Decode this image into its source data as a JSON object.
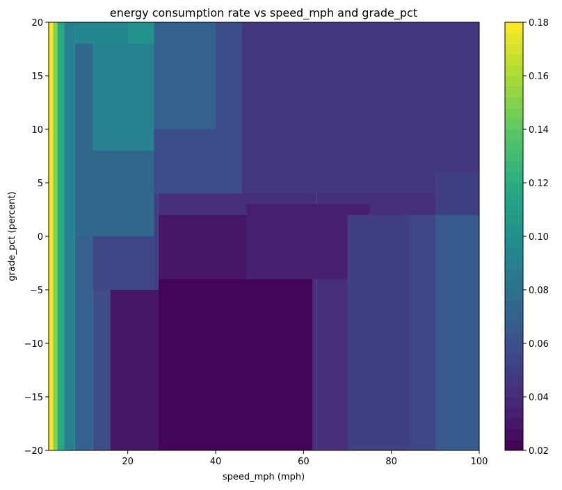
{
  "chart_data": {
    "type": "heatmap",
    "title": "energy consumption rate vs speed_mph and grade_pct",
    "xlabel": "speed_mph (mph)",
    "ylabel": "grade_pct (percent)",
    "xlim": [
      2,
      100
    ],
    "ylim": [
      -20,
      20
    ],
    "x_ticks": [
      20,
      40,
      60,
      80,
      100
    ],
    "x_tick_labels": [
      "20",
      "40",
      "60",
      "80",
      "100"
    ],
    "y_ticks": [
      -20,
      -15,
      -10,
      -5,
      0,
      5,
      10,
      15,
      20
    ],
    "y_tick_labels": [
      "−20",
      "−15",
      "−10",
      "−5",
      "0",
      "5",
      "10",
      "15",
      "20"
    ],
    "colorbar": {
      "colormap": "viridis",
      "range": [
        0.02,
        0.18
      ],
      "ticks": [
        0.02,
        0.04,
        0.06,
        0.08,
        0.1,
        0.12,
        0.14,
        0.16,
        0.18
      ],
      "tick_labels": [
        "0.02",
        "0.04",
        "0.06",
        "0.08",
        "0.10",
        "0.12",
        "0.14",
        "0.16",
        "0.18"
      ],
      "levels": 40
    },
    "grid": false,
    "regions": [
      {
        "x": [
          2,
          3
        ],
        "y": [
          -20,
          20
        ],
        "value": 0.18
      },
      {
        "x": [
          3,
          4
        ],
        "y": [
          -20,
          20
        ],
        "value": 0.15
      },
      {
        "x": [
          4,
          5.5
        ],
        "y": [
          -20,
          20
        ],
        "value": 0.12
      },
      {
        "x": [
          5.5,
          8
        ],
        "y": [
          -20,
          20
        ],
        "value": 0.09
      },
      {
        "x": [
          8,
          12
        ],
        "y": [
          -20,
          20
        ],
        "value": 0.072
      },
      {
        "x": [
          12,
          16
        ],
        "y": [
          -20,
          20
        ],
        "value": 0.06
      },
      {
        "x": [
          16,
          27
        ],
        "y": [
          -20,
          20
        ],
        "value": 0.05
      },
      {
        "x": [
          27,
          63
        ],
        "y": [
          -20,
          20
        ],
        "value": 0.04
      },
      {
        "x": [
          63,
          100
        ],
        "y": [
          -20,
          20
        ],
        "value": 0.042
      },
      {
        "x": [
          8,
          26
        ],
        "y": [
          0,
          20
        ],
        "value": 0.075
      },
      {
        "x": [
          12,
          26
        ],
        "y": [
          8,
          20
        ],
        "value": 0.09
      },
      {
        "x": [
          20,
          28
        ],
        "y": [
          18,
          20
        ],
        "value": 0.1
      },
      {
        "x": [
          8,
          20
        ],
        "y": [
          18,
          20
        ],
        "value": 0.095
      },
      {
        "x": [
          26,
          46
        ],
        "y": [
          4,
          20
        ],
        "value": 0.06
      },
      {
        "x": [
          26,
          40
        ],
        "y": [
          10,
          20
        ],
        "value": 0.068
      },
      {
        "x": [
          46,
          100
        ],
        "y": [
          4,
          20
        ],
        "value": 0.045
      },
      {
        "x": [
          12,
          26
        ],
        "y": [
          -5,
          0
        ],
        "value": 0.055
      },
      {
        "x": [
          16,
          27
        ],
        "y": [
          -20,
          -5
        ],
        "value": 0.03
      },
      {
        "x": [
          27,
          62
        ],
        "y": [
          -20,
          -4
        ],
        "value": 0.022
      },
      {
        "x": [
          27,
          47
        ],
        "y": [
          -4,
          2
        ],
        "value": 0.03
      },
      {
        "x": [
          47,
          75
        ],
        "y": [
          -4,
          3
        ],
        "value": 0.035
      },
      {
        "x": [
          70,
          84
        ],
        "y": [
          -20,
          2
        ],
        "value": 0.048
      },
      {
        "x": [
          84,
          90
        ],
        "y": [
          -20,
          2
        ],
        "value": 0.055
      },
      {
        "x": [
          90,
          100
        ],
        "y": [
          -20,
          2
        ],
        "value": 0.065
      },
      {
        "x": [
          90,
          100
        ],
        "y": [
          2,
          6
        ],
        "value": 0.05
      }
    ]
  }
}
